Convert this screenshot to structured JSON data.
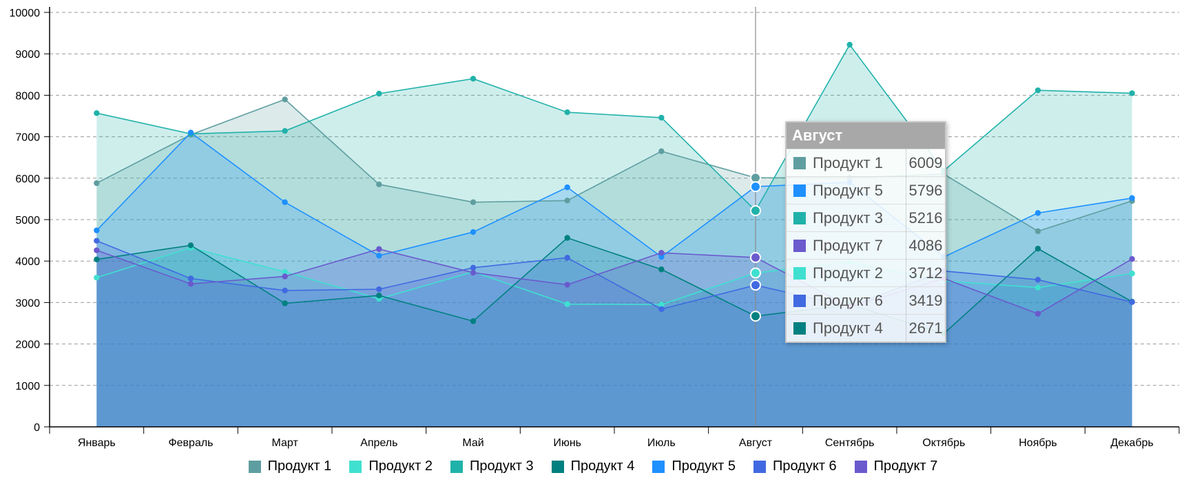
{
  "chart_data": {
    "type": "area",
    "categories": [
      "Январь",
      "Февраль",
      "Март",
      "Апрель",
      "Май",
      "Июнь",
      "Июль",
      "Август",
      "Сентябрь",
      "Октябрь",
      "Ноябрь",
      "Декабрь"
    ],
    "ylim": [
      0,
      10000
    ],
    "yticks": [
      "0",
      "1000",
      "2000",
      "3000",
      "4000",
      "5000",
      "6000",
      "7000",
      "8000",
      "9000",
      "10000"
    ],
    "grid": true,
    "legend_position": "bottom",
    "hovered_category_index": 7,
    "series": [
      {
        "name": "Продукт 1",
        "color": "#5F9EA0",
        "values": [
          5880,
          7050,
          7900,
          5850,
          5420,
          5460,
          6650,
          6009,
          6010,
          6100,
          4720,
          5450
        ]
      },
      {
        "name": "Продукт 2",
        "color": "#40E0D0",
        "values": [
          3600,
          4320,
          3740,
          3090,
          3740,
          2960,
          2950,
          3712,
          3980,
          3520,
          3360,
          3700
        ]
      },
      {
        "name": "Продукт 3",
        "color": "#20B2AA",
        "values": [
          7570,
          7070,
          7140,
          8040,
          8400,
          7590,
          7460,
          5216,
          9220,
          6180,
          8120,
          8050
        ]
      },
      {
        "name": "Продукт 4",
        "color": "#008080",
        "values": [
          4040,
          4380,
          2980,
          3170,
          2550,
          4560,
          3800,
          2671,
          2950,
          2250,
          4300,
          3020
        ]
      },
      {
        "name": "Продукт 5",
        "color": "#1E90FF",
        "values": [
          4740,
          7100,
          5420,
          4130,
          4700,
          5780,
          4100,
          5796,
          5900,
          4100,
          5160,
          5520
        ]
      },
      {
        "name": "Продукт 6",
        "color": "#4169E1",
        "values": [
          4490,
          3580,
          3290,
          3320,
          3840,
          4080,
          2840,
          3419,
          2900,
          3760,
          3550,
          3010
        ]
      },
      {
        "name": "Продукт 7",
        "color": "#6A5ACD",
        "values": [
          4260,
          3450,
          3630,
          4290,
          3720,
          3430,
          4200,
          4086,
          2900,
          3580,
          2730,
          4050
        ]
      }
    ]
  },
  "tooltip": {
    "title": "Август",
    "rows": [
      {
        "name": "Продукт 1",
        "value": "6009",
        "color": "#5F9EA0"
      },
      {
        "name": "Продукт 5",
        "value": "5796",
        "color": "#1E90FF"
      },
      {
        "name": "Продукт 3",
        "value": "5216",
        "color": "#20B2AA"
      },
      {
        "name": "Продукт 7",
        "value": "4086",
        "color": "#6A5ACD"
      },
      {
        "name": "Продукт 2",
        "value": "3712",
        "color": "#40E0D0"
      },
      {
        "name": "Продукт 6",
        "value": "3419",
        "color": "#4169E1"
      },
      {
        "name": "Продукт 4",
        "value": "2671",
        "color": "#008080"
      }
    ]
  }
}
